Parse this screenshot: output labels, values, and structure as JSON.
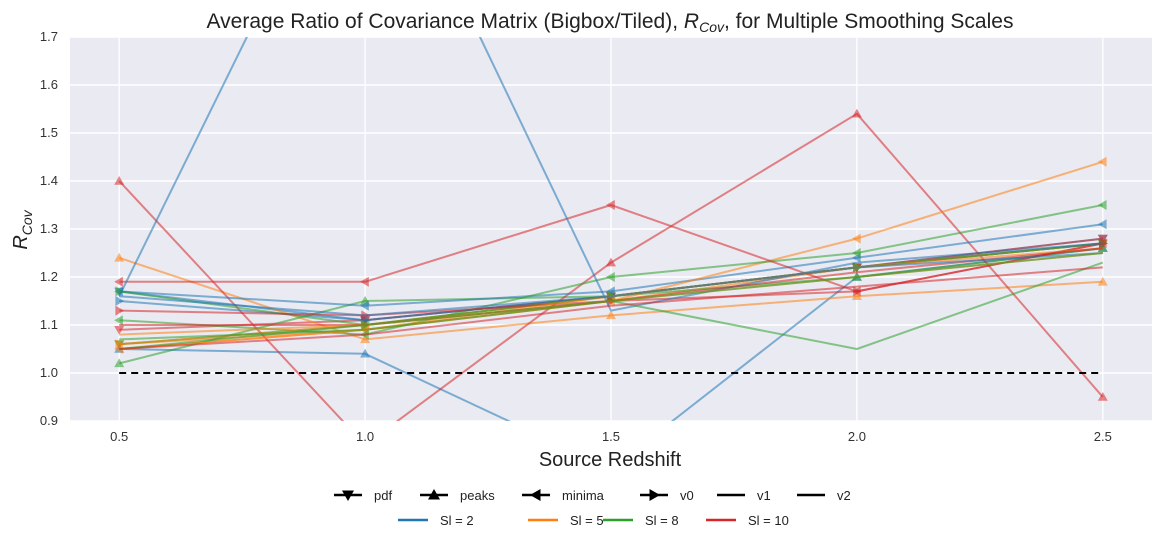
{
  "chart_data": {
    "type": "line",
    "title": "Average Ratio of Covariance Matrix (Bigbox/Tiled), R_Cov, for Multiple Smoothing Scales",
    "title_plain": "Average Ratio of Covariance Matrix (Bigbox/Tiled), ",
    "title_math_base": "R",
    "title_math_sub": "Cov",
    "title_tail": ", for Multiple Smoothing Scales",
    "xlabel": "Source Redshift",
    "ylabel_base": "R",
    "ylabel_sub": "Cov",
    "x": [
      0.5,
      1.0,
      1.5,
      2.0,
      2.5
    ],
    "xlim": [
      0.4,
      2.6
    ],
    "ylim": [
      0.9,
      1.7
    ],
    "xticks": [
      "0.5",
      "1.0",
      "1.5",
      "2.0",
      "2.5"
    ],
    "yticks": [
      "0.9",
      "1.0",
      "1.1",
      "1.2",
      "1.3",
      "1.4",
      "1.5",
      "1.6",
      "1.7"
    ],
    "grid": true,
    "background": "#EAEAF2",
    "reference_line": {
      "y": 1.0,
      "style": "dashed",
      "color": "#000000"
    },
    "colors": {
      "Sl = 2": "#1f77b4",
      "Sl = 5": "#ff7f0e",
      "Sl = 8": "#2ca02c",
      "Sl = 10": "#d62728"
    },
    "series": [
      {
        "stat": "pdf",
        "scale": "Sl = 2",
        "values": [
          1.17,
          1.11,
          1.16,
          1.22,
          1.28
        ]
      },
      {
        "stat": "pdf",
        "scale": "Sl = 5",
        "values": [
          1.06,
          1.09,
          1.15,
          1.22,
          1.27
        ]
      },
      {
        "stat": "pdf",
        "scale": "Sl = 8",
        "values": [
          1.06,
          1.1,
          1.16,
          1.22,
          1.27
        ]
      },
      {
        "stat": "pdf",
        "scale": "Sl = 10",
        "values": [
          1.09,
          1.11,
          1.16,
          1.22,
          1.28
        ]
      },
      {
        "stat": "peaks",
        "scale": "Sl = 2",
        "values": [
          1.05,
          1.04,
          0.8,
          1.2,
          1.26
        ]
      },
      {
        "stat": "peaks",
        "scale": "Sl = 5",
        "values": [
          1.24,
          1.07,
          1.12,
          1.16,
          1.19
        ]
      },
      {
        "stat": "peaks",
        "scale": "Sl = 8",
        "values": [
          1.02,
          1.15,
          1.16,
          1.2,
          1.26
        ]
      },
      {
        "stat": "peaks",
        "scale": "Sl = 10",
        "values": [
          1.4,
          0.85,
          1.23,
          1.54,
          0.95
        ]
      },
      {
        "stat": "minima",
        "scale": "Sl = 2",
        "values": [
          1.17,
          1.14,
          1.17,
          1.24,
          1.31
        ]
      },
      {
        "stat": "minima",
        "scale": "Sl = 5",
        "values": [
          1.05,
          1.09,
          1.15,
          1.28,
          1.44
        ]
      },
      {
        "stat": "minima",
        "scale": "Sl = 8",
        "values": [
          1.11,
          1.08,
          1.2,
          1.25,
          1.35
        ]
      },
      {
        "stat": "minima",
        "scale": "Sl = 10",
        "values": [
          1.19,
          1.19,
          1.35,
          1.17,
          1.27
        ]
      },
      {
        "stat": "v0",
        "scale": "Sl = 2",
        "values": [
          1.15,
          1.11,
          1.16,
          1.22,
          1.27
        ]
      },
      {
        "stat": "v0",
        "scale": "Sl = 5",
        "values": [
          1.06,
          1.1,
          1.16,
          1.22,
          1.27
        ]
      },
      {
        "stat": "v0",
        "scale": "Sl = 8",
        "values": [
          1.17,
          1.1,
          1.16,
          1.22,
          1.27
        ]
      },
      {
        "stat": "v0",
        "scale": "Sl = 10",
        "values": [
          1.13,
          1.12,
          1.15,
          1.17,
          1.27
        ]
      },
      {
        "stat": "v1",
        "scale": "Sl = 2",
        "values": [
          1.16,
          2.2,
          1.13,
          1.23,
          1.27
        ]
      },
      {
        "stat": "v1",
        "scale": "Sl = 5",
        "values": [
          1.05,
          1.09,
          1.16,
          1.22,
          1.26
        ]
      },
      {
        "stat": "v1",
        "scale": "Sl = 8",
        "values": [
          1.07,
          1.09,
          1.15,
          1.05,
          1.23
        ]
      },
      {
        "stat": "v1",
        "scale": "Sl = 10",
        "values": [
          1.1,
          1.1,
          1.15,
          1.21,
          1.26
        ]
      },
      {
        "stat": "v2",
        "scale": "Sl = 2",
        "values": [
          1.16,
          1.12,
          1.16,
          1.22,
          1.25
        ]
      },
      {
        "stat": "v2",
        "scale": "Sl = 5",
        "values": [
          1.08,
          1.1,
          1.15,
          1.2,
          1.25
        ]
      },
      {
        "stat": "v2",
        "scale": "Sl = 8",
        "values": [
          1.05,
          1.1,
          1.15,
          1.2,
          1.25
        ]
      },
      {
        "stat": "v2",
        "scale": "Sl = 10",
        "values": [
          1.05,
          1.08,
          1.14,
          1.18,
          1.22
        ]
      }
    ],
    "legend": {
      "placement": "bottom",
      "statistics": [
        {
          "name": "pdf",
          "marker": "triangle-down"
        },
        {
          "name": "peaks",
          "marker": "triangle-up"
        },
        {
          "name": "minima",
          "marker": "triangle-left"
        },
        {
          "name": "v0",
          "marker": "triangle-right"
        },
        {
          "name": "v1",
          "marker": "none"
        },
        {
          "name": "v2",
          "marker": "none"
        }
      ],
      "scales": [
        "Sl = 2",
        "Sl = 5",
        "Sl = 8",
        "Sl = 10"
      ]
    }
  }
}
